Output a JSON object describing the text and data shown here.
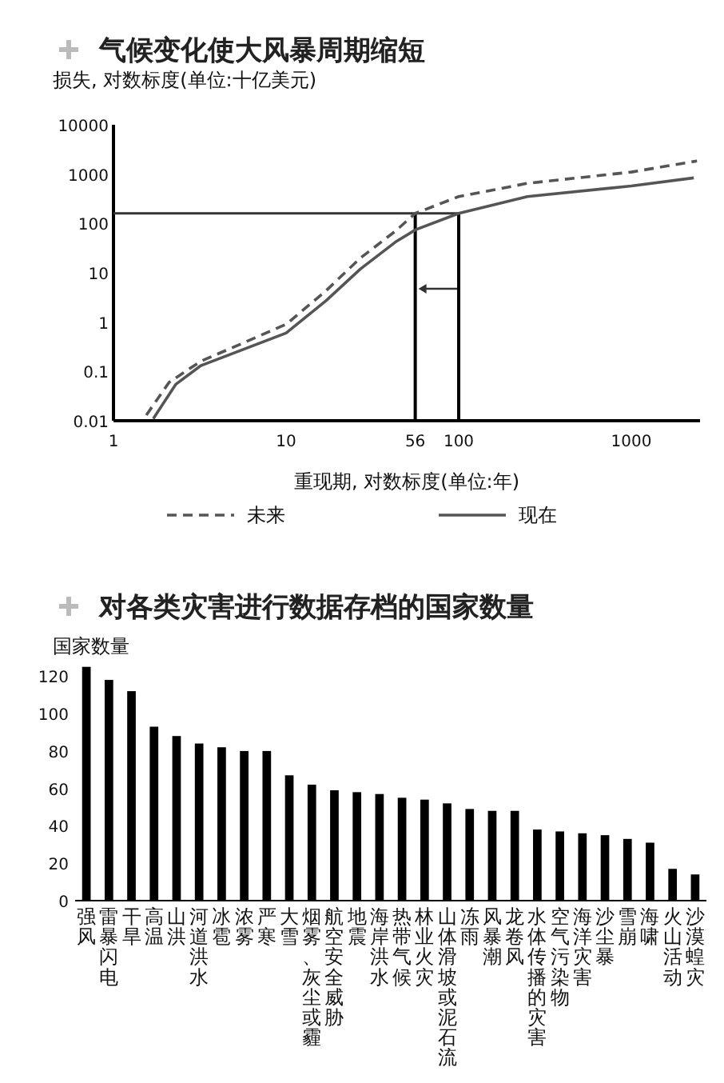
{
  "chart_data": [
    {
      "type": "line",
      "title": "气候变化使大风暴周期缩短",
      "ylabel": "损失, 对数标度(单位:十亿美元)",
      "xlabel": "重现期, 对数标度(单位:年)",
      "log": "xy",
      "xlim": [
        1,
        2500
      ],
      "ylim": [
        0.01,
        10000
      ],
      "xticks": [
        1,
        10,
        56,
        100,
        1000
      ],
      "yticks": [
        0.01,
        0.1,
        1,
        10,
        100,
        1000,
        10000
      ],
      "legend": "bottom",
      "ref_lines": [
        {
          "axis": "y",
          "value": 160,
          "color": "#333333"
        },
        {
          "axis": "x",
          "value": 56,
          "color": "#000000"
        },
        {
          "axis": "x",
          "value": 100,
          "color": "#000000"
        }
      ],
      "series": [
        {
          "name": "未来",
          "color": "#555555",
          "line_style": "dashed",
          "x": [
            1.55,
            2.1,
            3.2,
            10,
            17,
            27,
            43,
            56,
            100,
            250,
            1000,
            2400
          ],
          "values": [
            0.013,
            0.06,
            0.16,
            0.9,
            4.3,
            20,
            70,
            160,
            350,
            650,
            1100,
            1850
          ]
        },
        {
          "name": "现在",
          "color": "#555555",
          "line_style": "solid",
          "x": [
            1.7,
            2.3,
            3.2,
            10,
            17,
            27,
            43,
            56,
            100,
            250,
            1000,
            2300
          ],
          "values": [
            0.011,
            0.055,
            0.13,
            0.6,
            2.7,
            12,
            42,
            74,
            160,
            350,
            575,
            840
          ]
        }
      ]
    },
    {
      "type": "bar",
      "title": "对各类灾害进行数据存档的国家数量",
      "ylabel": "国家数量",
      "ylim": [
        0,
        130
      ],
      "yticks": [
        0,
        20,
        40,
        60,
        80,
        100,
        120
      ],
      "color": "#000000",
      "categories": [
        "强风",
        "雷暴闪电",
        "干旱",
        "高温",
        "山洪",
        "河道洪水",
        "冰雹",
        "浓雾",
        "严寒",
        "大雪",
        "烟雾、灰尘或霾",
        "航空安全威胁",
        "地震",
        "海岸洪水",
        "热带气候",
        "林业火灾",
        "山体滑坡或泥石流",
        "冻雨",
        "风暴潮",
        "龙卷风",
        "水体传播的灾害",
        "空气污染物",
        "海洋灾害",
        "沙尘暴",
        "雪崩",
        "海啸",
        "火山活动",
        "沙漠蝗灾"
      ],
      "values": [
        125,
        118,
        112,
        93,
        88,
        84,
        82,
        80,
        80,
        67,
        62,
        59,
        58,
        57,
        55,
        54,
        52,
        49,
        48,
        48,
        38,
        37,
        36,
        35,
        33,
        31,
        17,
        14
      ]
    }
  ]
}
